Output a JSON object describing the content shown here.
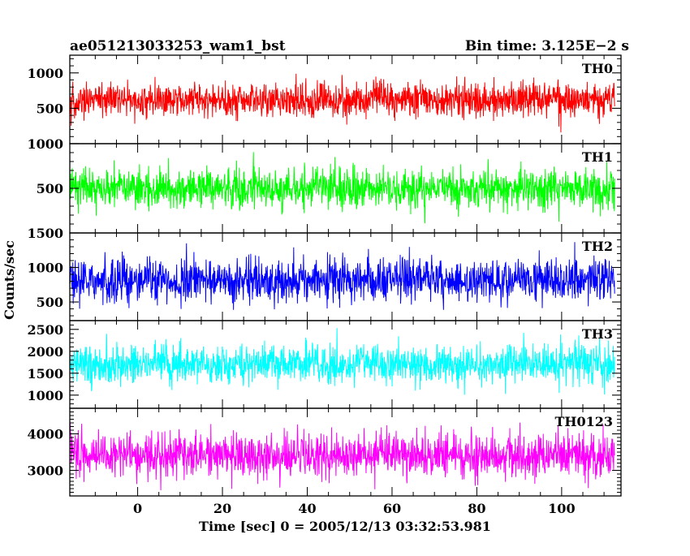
{
  "header": {
    "left_title": "ae051213033253_wam1_bst",
    "right_title": "Bin time: 3.125E−2 s"
  },
  "chart_data": {
    "type": "line",
    "title": "ae051213033253_wam1_bst",
    "subtitle": "Bin time: 3.125E−2 s",
    "xlabel": "Time [sec] 0 = 2005/12/13 03:32:53.981",
    "ylabel": "Counts/sec",
    "xlim": [
      -16,
      114
    ],
    "x_data_range": [
      -16,
      112.5
    ],
    "x_ticks": [
      0,
      20,
      40,
      60,
      80,
      100
    ],
    "x_tick_labels": [
      "0",
      "20",
      "40",
      "60",
      "80",
      "100"
    ],
    "grid": false,
    "panels": [
      {
        "name": "TH0",
        "color": "#ff0000",
        "ylim": [
          0,
          1250
        ],
        "y_ticks": [
          500,
          1000
        ],
        "y_tick_labels": [
          "500",
          "1000"
        ],
        "mean": 620,
        "spread": 120,
        "low": 150,
        "high": 1250
      },
      {
        "name": "TH1",
        "color": "#00ff00",
        "ylim": [
          0,
          1000
        ],
        "y_ticks": [
          500,
          1000
        ],
        "y_tick_labels": [
          "500",
          "1000"
        ],
        "mean": 500,
        "spread": 110,
        "low": 100,
        "high": 980
      },
      {
        "name": "TH2",
        "color": "#0000ff",
        "ylim": [
          230,
          1500
        ],
        "y_ticks": [
          500,
          1000,
          1500
        ],
        "y_tick_labels": [
          "500",
          "1000",
          "1500"
        ],
        "mean": 820,
        "spread": 150,
        "low": 250,
        "high": 1500
      },
      {
        "name": "TH3",
        "color": "#00ffff",
        "ylim": [
          700,
          2700
        ],
        "y_ticks": [
          1000,
          1500,
          2000,
          2500
        ],
        "y_tick_labels": [
          "1000",
          "1500",
          "2000",
          "2500"
        ],
        "mean": 1700,
        "spread": 230,
        "low": 800,
        "high": 2700
      },
      {
        "name": "TH0123",
        "color": "#ff00ff",
        "ylim": [
          2300,
          4700
        ],
        "y_ticks": [
          3000,
          4000
        ],
        "y_tick_labels": [
          "3000",
          "4000"
        ],
        "mean": 3400,
        "spread": 300,
        "low": 2300,
        "high": 4650
      }
    ]
  }
}
